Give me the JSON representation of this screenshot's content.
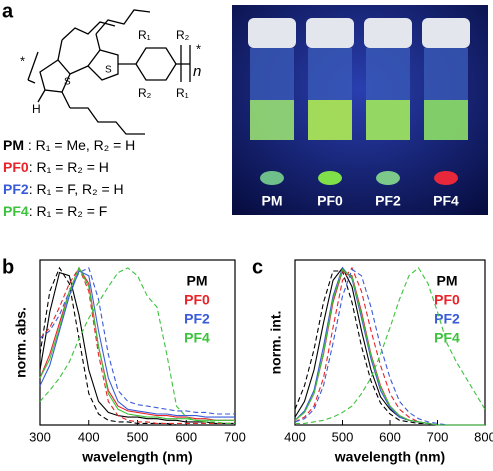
{
  "panel_labels": [
    "a",
    "b",
    "c"
  ],
  "structure_labels": [
    "*",
    "R₁",
    "R₂",
    "R₂",
    "R₁",
    "n",
    "*",
    "H"
  ],
  "compounds": [
    {
      "name": "PM",
      "color": "#000000",
      "text": " : R₁ = Me, R₂ = H"
    },
    {
      "name": "PF0",
      "color": "#e8232a",
      "text": ": R₁ = R₂ = H"
    },
    {
      "name": "PF2",
      "color": "#3a5bd9",
      "text": ": R₁ = F, R₂ = H"
    },
    {
      "name": "PF4",
      "color": "#3cc23c",
      "text": ": R₁ = R₂ = F"
    }
  ],
  "photo_labels": [
    "PM",
    "PF0",
    "PF2",
    "PF4"
  ],
  "chart_data": [
    {
      "type": "line",
      "xlabel": "wavelength (nm)",
      "ylabel": "norm. abs.",
      "x": [
        300,
        320,
        340,
        360,
        380,
        400,
        420,
        440,
        460,
        480,
        500,
        520,
        540,
        560,
        580,
        600,
        620,
        640,
        660,
        680,
        700
      ],
      "xlim": [
        300,
        700
      ],
      "xticks": [
        300,
        400,
        500,
        600,
        700
      ],
      "ylim": [
        0,
        1.05
      ],
      "series": [
        {
          "name": "PM",
          "color": "#000000",
          "values": [
            0.35,
            0.72,
            0.97,
            0.95,
            0.7,
            0.35,
            0.15,
            0.08,
            0.06,
            0.05,
            0.05,
            0.04,
            0.04,
            0.03,
            0.03,
            0.02,
            0.02,
            0.02,
            0.01,
            0.01,
            0.01
          ],
          "dashed_values": [
            0.45,
            0.85,
            1.0,
            0.9,
            0.55,
            0.2,
            0.07,
            0.03,
            0.02,
            0.02,
            0.01,
            0.01,
            0.01,
            0.01,
            0.0,
            0.0,
            0.0,
            0.0,
            0.0,
            0.0,
            0.0
          ]
        },
        {
          "name": "PF0",
          "color": "#e8232a",
          "values": [
            0.3,
            0.45,
            0.65,
            0.85,
            1.0,
            0.9,
            0.5,
            0.22,
            0.12,
            0.09,
            0.08,
            0.07,
            0.06,
            0.06,
            0.05,
            0.05,
            0.04,
            0.04,
            0.03,
            0.03,
            0.03
          ],
          "dashed_values": [
            0.55,
            0.62,
            0.75,
            0.9,
            1.0,
            0.85,
            0.45,
            0.15,
            0.06,
            0.03,
            0.02,
            0.02,
            0.01,
            0.01,
            0.01,
            0.01,
            0.01,
            0.01,
            0.01,
            0.01,
            0.01
          ]
        },
        {
          "name": "PF2",
          "color": "#3a5bd9",
          "values": [
            0.25,
            0.38,
            0.6,
            0.82,
            0.98,
            0.95,
            0.6,
            0.3,
            0.15,
            0.1,
            0.09,
            0.08,
            0.07,
            0.07,
            0.06,
            0.06,
            0.06,
            0.05,
            0.05,
            0.05,
            0.05
          ],
          "dashed_values": [
            0.55,
            0.6,
            0.7,
            0.85,
            0.97,
            1.0,
            0.8,
            0.45,
            0.22,
            0.15,
            0.13,
            0.12,
            0.11,
            0.1,
            0.09,
            0.09,
            0.08,
            0.08,
            0.07,
            0.07,
            0.07
          ]
        },
        {
          "name": "PF4",
          "color": "#3cc23c",
          "values": [
            0.3,
            0.42,
            0.62,
            0.85,
            1.0,
            0.88,
            0.5,
            0.2,
            0.1,
            0.07,
            0.06,
            0.05,
            0.05,
            0.04,
            0.04,
            0.04,
            0.03,
            0.03,
            0.03,
            0.03,
            0.03
          ],
          "dashed_values": [
            0.15,
            0.22,
            0.3,
            0.4,
            0.55,
            0.68,
            0.78,
            0.88,
            0.97,
            1.0,
            0.95,
            0.82,
            0.75,
            0.45,
            0.12,
            0.05,
            0.03,
            0.02,
            0.02,
            0.01,
            0.01
          ]
        }
      ]
    },
    {
      "type": "line",
      "xlabel": "wavelength (nm)",
      "ylabel": "norm. int.",
      "x": [
        400,
        420,
        440,
        460,
        480,
        500,
        520,
        540,
        560,
        580,
        600,
        620,
        640,
        660,
        680,
        700,
        720,
        740,
        760,
        780,
        800
      ],
      "xlim": [
        400,
        800
      ],
      "xticks": [
        400,
        500,
        600,
        700,
        800
      ],
      "ylim": [
        0,
        1.05
      ],
      "series": [
        {
          "name": "PM",
          "color": "#000000",
          "values": [
            0.05,
            0.15,
            0.35,
            0.65,
            0.92,
            1.0,
            0.88,
            0.6,
            0.35,
            0.18,
            0.1,
            0.05,
            0.03,
            0.02,
            0.01,
            0.0,
            0.0,
            0.0,
            0.0,
            0.0,
            0.0
          ],
          "dashed_values": [
            0.1,
            0.25,
            0.48,
            0.78,
            0.98,
            0.98,
            0.78,
            0.5,
            0.28,
            0.14,
            0.07,
            0.03,
            0.02,
            0.01,
            0.01,
            0.0,
            0.0,
            0.0,
            0.0,
            0.0,
            0.0
          ]
        },
        {
          "name": "PF0",
          "color": "#e8232a",
          "values": [
            0.03,
            0.08,
            0.2,
            0.45,
            0.78,
            0.98,
            0.95,
            0.72,
            0.45,
            0.25,
            0.12,
            0.06,
            0.03,
            0.02,
            0.01,
            0.0,
            0.0,
            0.0,
            0.0,
            0.0,
            0.0
          ],
          "dashed_values": [
            0.02,
            0.05,
            0.12,
            0.3,
            0.62,
            0.92,
            1.0,
            0.85,
            0.6,
            0.38,
            0.2,
            0.1,
            0.05,
            0.02,
            0.01,
            0.0,
            0.0,
            0.0,
            0.0,
            0.0,
            0.0
          ]
        },
        {
          "name": "PF2",
          "color": "#3a5bd9",
          "values": [
            0.03,
            0.09,
            0.22,
            0.5,
            0.82,
            1.0,
            0.93,
            0.68,
            0.42,
            0.22,
            0.11,
            0.05,
            0.03,
            0.02,
            0.01,
            0.0,
            0.0,
            0.0,
            0.0,
            0.0,
            0.0
          ],
          "dashed_values": [
            0.02,
            0.04,
            0.1,
            0.25,
            0.52,
            0.82,
            0.99,
            0.95,
            0.75,
            0.5,
            0.3,
            0.15,
            0.08,
            0.04,
            0.02,
            0.01,
            0.0,
            0.0,
            0.0,
            0.0,
            0.0
          ]
        },
        {
          "name": "PF4",
          "color": "#3cc23c",
          "values": [
            0.03,
            0.08,
            0.2,
            0.46,
            0.8,
            0.99,
            0.94,
            0.7,
            0.44,
            0.24,
            0.12,
            0.06,
            0.03,
            0.02,
            0.01,
            0.0,
            0.0,
            0.0,
            0.0,
            0.0,
            0.0
          ],
          "dashed_values": [
            0.01,
            0.01,
            0.02,
            0.03,
            0.05,
            0.08,
            0.12,
            0.2,
            0.3,
            0.45,
            0.62,
            0.8,
            0.95,
            1.0,
            0.9,
            0.72,
            0.52,
            0.4,
            0.3,
            0.2,
            0.1
          ]
        }
      ]
    }
  ]
}
